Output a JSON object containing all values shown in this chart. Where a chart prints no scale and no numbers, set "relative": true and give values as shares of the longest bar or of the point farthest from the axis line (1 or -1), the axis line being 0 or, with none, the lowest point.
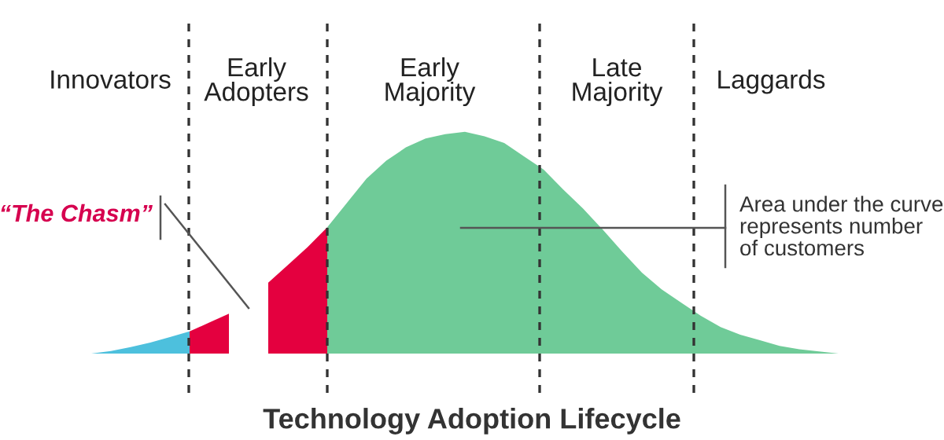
{
  "chart_data": {
    "type": "area",
    "relative": true,
    "xlabel": "Technology Adoption Lifecycle",
    "tick_labels": false,
    "categories": [
      null,
      null,
      null,
      null,
      null,
      null,
      null,
      null,
      null,
      null,
      null,
      null,
      null,
      null,
      null,
      null,
      null,
      null,
      null,
      null,
      null,
      null,
      null,
      null,
      null,
      null,
      null,
      null,
      null,
      null,
      null,
      null,
      null,
      null,
      null,
      null,
      null,
      null,
      null
    ],
    "series": [
      {
        "color": "#4dc0dd",
        "values": [
          0,
          0.012,
          0.029,
          0.05,
          0.075,
          0.1,
          null,
          null,
          null,
          null,
          null,
          null,
          null,
          null,
          null,
          null,
          null,
          null,
          null,
          null,
          null,
          null,
          null,
          null,
          null,
          null,
          null,
          null,
          null,
          null,
          null,
          null,
          null,
          null,
          null,
          null,
          null,
          null,
          null
        ]
      },
      {
        "color": "#e4003f",
        "values": [
          null,
          null,
          null,
          null,
          null,
          0.1,
          0.14,
          0.18,
          null,
          0.32,
          0.4,
          0.48,
          0.57,
          null,
          null,
          null,
          null,
          null,
          null,
          null,
          null,
          null,
          null,
          null,
          null,
          null,
          null,
          null,
          null,
          null,
          null,
          null,
          null,
          null,
          null,
          null,
          null,
          null,
          null
        ]
      },
      {
        "color": "#6fcb98",
        "values": [
          null,
          null,
          null,
          null,
          null,
          null,
          null,
          null,
          null,
          null,
          null,
          null,
          0.57,
          0.68,
          0.79,
          0.87,
          0.93,
          0.97,
          0.99,
          1,
          0.98,
          0.95,
          0.89,
          0.83,
          0.74,
          0.655,
          0.56,
          0.46,
          0.365,
          0.29,
          0.23,
          0.17,
          0.12,
          0.085,
          0.06,
          0.035,
          0.02,
          0.01,
          0
        ]
      }
    ],
    "annotations": [
      "Innovators",
      "Early\nAdopters",
      "Early\nMajority",
      "Late\nMajority",
      "Laggards",
      "“The Chasm”",
      "Area under the curve\nrepresents number\nof customers"
    ]
  }
}
